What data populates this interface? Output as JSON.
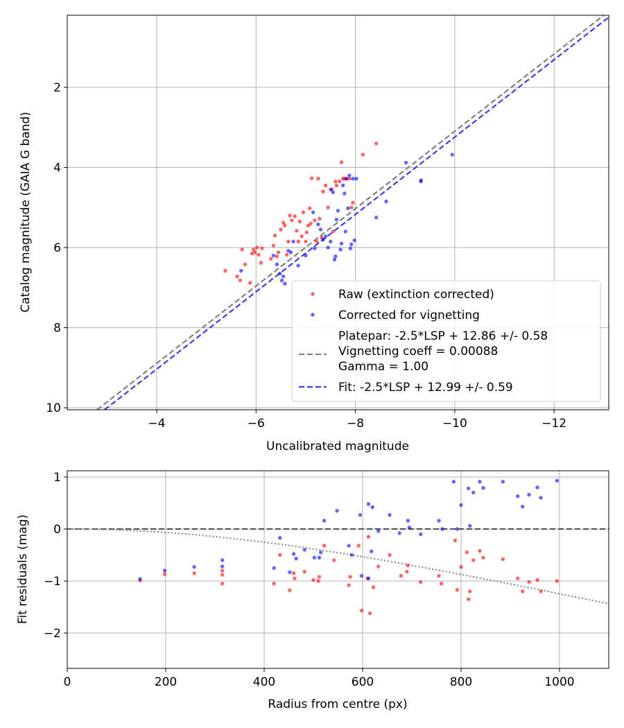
{
  "chart_data": [
    {
      "type": "scatter",
      "xlabel": "Uncalibrated magnitude",
      "ylabel": "Catalog magnitude (GAIA G band)",
      "xlim": [
        -2.2,
        -13.1
      ],
      "ylim": [
        10.05,
        0.2
      ],
      "xticks": [
        -4,
        -6,
        -8,
        -10,
        -12
      ],
      "xtick_labels": [
        "−4",
        "−6",
        "−8",
        "−10",
        "−12"
      ],
      "yticks": [
        2,
        4,
        6,
        8,
        10
      ],
      "ytick_labels": [
        "2",
        "4",
        "6",
        "8",
        "10"
      ],
      "grid": true,
      "legend_position": "lower-right",
      "legend": [
        {
          "kind": "point",
          "color": "#ff0000",
          "lines": [
            "Raw (extinction corrected)"
          ]
        },
        {
          "kind": "point",
          "color": "#0000ff",
          "lines": [
            "Corrected for vignetting"
          ]
        },
        {
          "kind": "dash",
          "color": "#808080",
          "lines": [
            "Platepar: -2.5*LSP + 12.86 +/- 0.58",
            "Vignetting coeff = 0.00088",
            "Gamma = 1.00"
          ]
        },
        {
          "kind": "dash",
          "color": "#3c3cf0",
          "lines": [
            "Fit: -2.5*LSP + 12.99 +/- 0.59"
          ]
        }
      ],
      "lines": [
        {
          "color": "#808080",
          "points": [
            [
              -2.8,
              10.05
            ],
            [
              -13.0,
              0.2
            ]
          ]
        },
        {
          "color": "#3c3cf0",
          "points": [
            [
              -2.95,
              10.05
            ],
            [
              -13.15,
              0.2
            ]
          ]
        }
      ],
      "series": [
        {
          "color": "#ff0000",
          "points": [
            [
              -5.38,
              6.58
            ],
            [
              -5.62,
              6.72
            ],
            [
              -5.68,
              6.82
            ],
            [
              -5.72,
              6.05
            ],
            [
              -5.78,
              6.42
            ],
            [
              -5.88,
              6.88
            ],
            [
              -5.92,
              6.15
            ],
            [
              -5.95,
              6.05
            ],
            [
              -5.98,
              6.12
            ],
            [
              -6.02,
              6.0
            ],
            [
              -6.05,
              6.18
            ],
            [
              -6.1,
              6.38
            ],
            [
              -6.12,
              6.02
            ],
            [
              -6.3,
              6.28
            ],
            [
              -6.35,
              5.95
            ],
            [
              -6.38,
              5.7
            ],
            [
              -6.42,
              6.22
            ],
            [
              -6.45,
              6.12
            ],
            [
              -6.5,
              5.55
            ],
            [
              -6.55,
              5.38
            ],
            [
              -6.58,
              5.45
            ],
            [
              -6.62,
              6.18
            ],
            [
              -6.65,
              5.85
            ],
            [
              -6.68,
              5.2
            ],
            [
              -6.72,
              5.32
            ],
            [
              -6.78,
              5.22
            ],
            [
              -6.82,
              5.58
            ],
            [
              -6.85,
              5.85
            ],
            [
              -6.88,
              5.35
            ],
            [
              -6.92,
              5.72
            ],
            [
              -6.95,
              5.12
            ],
            [
              -7.0,
              5.85
            ],
            [
              -7.02,
              5.62
            ],
            [
              -7.05,
              5.45
            ],
            [
              -7.08,
              5.02
            ],
            [
              -7.1,
              5.4
            ],
            [
              -7.12,
              4.27
            ],
            [
              -7.18,
              5.32
            ],
            [
              -7.22,
              5.85
            ],
            [
              -7.25,
              4.28
            ],
            [
              -7.28,
              5.28
            ],
            [
              -7.32,
              5.75
            ],
            [
              -7.35,
              4.6
            ],
            [
              -7.4,
              4.45
            ],
            [
              -7.45,
              5.0
            ],
            [
              -7.5,
              4.55
            ],
            [
              -7.55,
              5.6
            ],
            [
              -7.6,
              4.35
            ],
            [
              -7.62,
              4.45
            ],
            [
              -7.68,
              4.35
            ],
            [
              -7.72,
              3.87
            ],
            [
              -7.75,
              4.28
            ],
            [
              -7.78,
              4.28
            ],
            [
              -7.82,
              4.28
            ],
            [
              -7.88,
              4.28
            ],
            [
              -7.92,
              5.0
            ],
            [
              -7.95,
              4.88
            ],
            [
              -8.15,
              3.68
            ],
            [
              -8.42,
              3.4
            ]
          ]
        },
        {
          "color": "#0000ff",
          "points": [
            [
              -5.7,
              6.58
            ],
            [
              -6.35,
              6.2
            ],
            [
              -6.42,
              6.42
            ],
            [
              -6.48,
              6.65
            ],
            [
              -6.52,
              6.82
            ],
            [
              -6.55,
              6.72
            ],
            [
              -6.58,
              6.9
            ],
            [
              -6.65,
              6.08
            ],
            [
              -6.7,
              6.12
            ],
            [
              -6.75,
              5.85
            ],
            [
              -6.85,
              6.45
            ],
            [
              -7.0,
              6.2
            ],
            [
              -7.15,
              5.12
            ],
            [
              -7.18,
              6.02
            ],
            [
              -7.25,
              5.42
            ],
            [
              -7.3,
              5.55
            ],
            [
              -7.35,
              5.8
            ],
            [
              -7.4,
              5.72
            ],
            [
              -7.45,
              6.0
            ],
            [
              -7.5,
              5.85
            ],
            [
              -7.52,
              4.55
            ],
            [
              -7.55,
              4.62
            ],
            [
              -7.58,
              6.3
            ],
            [
              -7.6,
              6.22
            ],
            [
              -7.62,
              5.3
            ],
            [
              -7.65,
              5.08
            ],
            [
              -7.7,
              6.05
            ],
            [
              -7.72,
              5.9
            ],
            [
              -7.75,
              4.45
            ],
            [
              -7.78,
              4.65
            ],
            [
              -7.8,
              5.6
            ],
            [
              -7.82,
              4.28
            ],
            [
              -7.85,
              5.02
            ],
            [
              -7.88,
              4.2
            ],
            [
              -7.9,
              6.02
            ],
            [
              -7.92,
              5.92
            ],
            [
              -7.95,
              4.28
            ],
            [
              -7.98,
              5.82
            ],
            [
              -8.02,
              4.28
            ],
            [
              -8.42,
              5.25
            ],
            [
              -8.62,
              4.85
            ],
            [
              -9.02,
              3.88
            ],
            [
              -9.32,
              4.35
            ],
            [
              -9.32,
              4.32
            ],
            [
              -9.95,
              3.68
            ]
          ]
        }
      ]
    },
    {
      "type": "scatter",
      "xlabel": "Radius from centre (px)",
      "ylabel": "Fit residuals (mag)",
      "xlim": [
        0,
        1100
      ],
      "ylim": [
        -2.68,
        1.12
      ],
      "xticks": [
        0,
        200,
        400,
        600,
        800,
        1000
      ],
      "xtick_labels": [
        "0",
        "200",
        "400",
        "600",
        "800",
        "1000"
      ],
      "yticks": [
        1,
        0,
        -1,
        -2
      ],
      "ytick_labels": [
        "1",
        "0",
        "−1",
        "−2"
      ],
      "grid": true,
      "hline": {
        "y": 0,
        "color": "#4d4d4d"
      },
      "curve": {
        "color": "#808080",
        "coeff": 0.00088
      },
      "series": [
        {
          "color": "#ff0000",
          "points": [
            [
              148,
              -0.99
            ],
            [
              198,
              -0.87
            ],
            [
              258,
              -0.85
            ],
            [
              315,
              -0.8
            ],
            [
              315,
              -0.88
            ],
            [
              315,
              -1.05
            ],
            [
              420,
              -1.05
            ],
            [
              432,
              -0.5
            ],
            [
              452,
              -1.18
            ],
            [
              460,
              -0.85
            ],
            [
              462,
              -0.95
            ],
            [
              482,
              -0.82
            ],
            [
              500,
              -0.98
            ],
            [
              510,
              -1.0
            ],
            [
              512,
              -0.92
            ],
            [
              522,
              -0.32
            ],
            [
              542,
              -0.6
            ],
            [
              572,
              -1.08
            ],
            [
              575,
              -0.92
            ],
            [
              592,
              -0.32
            ],
            [
              598,
              -1.57
            ],
            [
              610,
              -0.95
            ],
            [
              612,
              -0.15
            ],
            [
              615,
              -1.62
            ],
            [
              622,
              -1.12
            ],
            [
              632,
              -0.72
            ],
            [
              655,
              -0.5
            ],
            [
              678,
              -0.9
            ],
            [
              690,
              -0.82
            ],
            [
              692,
              -0.7
            ],
            [
              718,
              -1.02
            ],
            [
              755,
              -0.9
            ],
            [
              760,
              -1.05
            ],
            [
              788,
              -0.22
            ],
            [
              792,
              -1.17
            ],
            [
              800,
              -0.73
            ],
            [
              812,
              -0.45
            ],
            [
              815,
              -1.35
            ],
            [
              818,
              -1.2
            ],
            [
              825,
              -0.6
            ],
            [
              838,
              -0.42
            ],
            [
              845,
              -0.55
            ],
            [
              885,
              -0.58
            ],
            [
              915,
              -0.95
            ],
            [
              925,
              -1.2
            ],
            [
              938,
              -1.02
            ],
            [
              955,
              -0.98
            ],
            [
              962,
              -1.2
            ],
            [
              995,
              -1.0
            ]
          ]
        },
        {
          "color": "#0000ff",
          "points": [
            [
              148,
              -0.96
            ],
            [
              198,
              -0.8
            ],
            [
              258,
              -0.73
            ],
            [
              315,
              -0.6
            ],
            [
              315,
              -0.72
            ],
            [
              420,
              -0.75
            ],
            [
              432,
              -0.17
            ],
            [
              452,
              -0.83
            ],
            [
              460,
              -0.48
            ],
            [
              465,
              -0.57
            ],
            [
              482,
              -0.4
            ],
            [
              502,
              -0.55
            ],
            [
              512,
              -0.55
            ],
            [
              515,
              -0.45
            ],
            [
              522,
              0.16
            ],
            [
              548,
              0.35
            ],
            [
              572,
              -0.32
            ],
            [
              578,
              -0.5
            ],
            [
              595,
              0.27
            ],
            [
              598,
              -0.9
            ],
            [
              612,
              -0.95
            ],
            [
              612,
              0.48
            ],
            [
              618,
              -0.43
            ],
            [
              620,
              0.42
            ],
            [
              632,
              -0.04
            ],
            [
              655,
              0.27
            ],
            [
              675,
              -0.08
            ],
            [
              692,
              0.16
            ],
            [
              695,
              0.03
            ],
            [
              718,
              -0.1
            ],
            [
              755,
              0.16
            ],
            [
              762,
              0.0
            ],
            [
              785,
              0.91
            ],
            [
              792,
              0.0
            ],
            [
              800,
              0.46
            ],
            [
              815,
              0.78
            ],
            [
              818,
              0.06
            ],
            [
              825,
              0.7
            ],
            [
              838,
              0.91
            ],
            [
              845,
              0.79
            ],
            [
              885,
              0.91
            ],
            [
              915,
              0.63
            ],
            [
              925,
              0.43
            ],
            [
              938,
              0.66
            ],
            [
              955,
              0.8
            ],
            [
              962,
              0.6
            ],
            [
              995,
              0.93
            ]
          ]
        }
      ]
    }
  ]
}
